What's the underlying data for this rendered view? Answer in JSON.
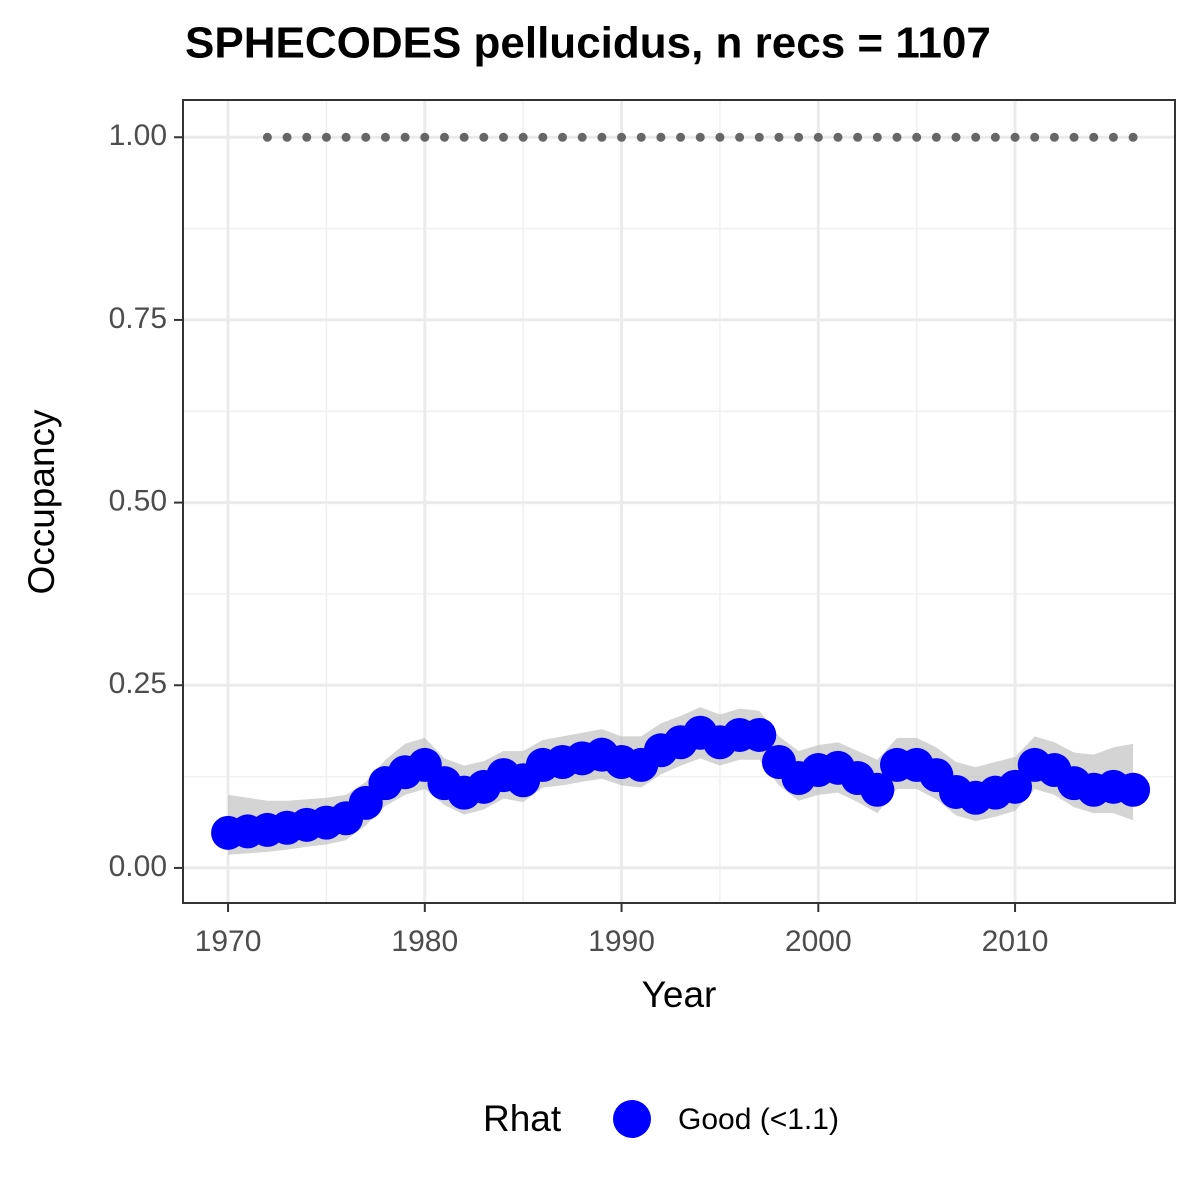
{
  "chart_data": {
    "type": "line",
    "title": "SPHECODES pellucidus, n recs = 1107",
    "xlabel": "Year",
    "ylabel": "Occupancy",
    "x": [
      1970,
      1971,
      1972,
      1973,
      1974,
      1975,
      1976,
      1977,
      1978,
      1979,
      1980,
      1981,
      1982,
      1983,
      1984,
      1985,
      1986,
      1987,
      1988,
      1989,
      1990,
      1991,
      1992,
      1993,
      1994,
      1995,
      1996,
      1997,
      1998,
      1999,
      2000,
      2001,
      2002,
      2003,
      2004,
      2005,
      2006,
      2007,
      2008,
      2009,
      2010,
      2011,
      2012,
      2013,
      2014,
      2015,
      2016
    ],
    "series": [
      {
        "name": "Good (<1.1)",
        "color": "#0000ff",
        "values": [
          0.048,
          0.05,
          0.052,
          0.055,
          0.059,
          0.062,
          0.068,
          0.089,
          0.116,
          0.131,
          0.141,
          0.116,
          0.103,
          0.111,
          0.127,
          0.12,
          0.141,
          0.145,
          0.15,
          0.155,
          0.145,
          0.141,
          0.161,
          0.172,
          0.185,
          0.172,
          0.182,
          0.182,
          0.145,
          0.123,
          0.134,
          0.137,
          0.123,
          0.107,
          0.141,
          0.141,
          0.127,
          0.104,
          0.096,
          0.103,
          0.111,
          0.141,
          0.134,
          0.116,
          0.107,
          0.111,
          0.107
        ],
        "lower": [
          0.018,
          0.02,
          0.022,
          0.025,
          0.029,
          0.032,
          0.038,
          0.058,
          0.085,
          0.1,
          0.108,
          0.086,
          0.073,
          0.08,
          0.095,
          0.09,
          0.11,
          0.113,
          0.118,
          0.122,
          0.113,
          0.11,
          0.128,
          0.14,
          0.15,
          0.14,
          0.148,
          0.148,
          0.113,
          0.092,
          0.1,
          0.103,
          0.09,
          0.075,
          0.108,
          0.108,
          0.094,
          0.072,
          0.064,
          0.07,
          0.078,
          0.108,
          0.1,
          0.083,
          0.075,
          0.075,
          0.065
        ],
        "upper": [
          0.1,
          0.096,
          0.092,
          0.092,
          0.094,
          0.096,
          0.1,
          0.118,
          0.148,
          0.17,
          0.178,
          0.15,
          0.14,
          0.146,
          0.16,
          0.16,
          0.175,
          0.18,
          0.185,
          0.19,
          0.18,
          0.18,
          0.198,
          0.208,
          0.22,
          0.21,
          0.218,
          0.215,
          0.18,
          0.16,
          0.168,
          0.172,
          0.16,
          0.148,
          0.178,
          0.178,
          0.165,
          0.145,
          0.138,
          0.145,
          0.152,
          0.18,
          0.172,
          0.158,
          0.155,
          0.165,
          0.17
        ]
      }
    ],
    "dots": {
      "color": "#666666",
      "x": [
        1972,
        1973,
        1974,
        1975,
        1976,
        1977,
        1978,
        1979,
        1980,
        1981,
        1982,
        1983,
        1984,
        1985,
        1986,
        1987,
        1988,
        1989,
        1990,
        1991,
        1992,
        1993,
        1994,
        1995,
        1996,
        1997,
        1998,
        1999,
        2000,
        2001,
        2002,
        2003,
        2004,
        2005,
        2006,
        2007,
        2008,
        2009,
        2010,
        2011,
        2012,
        2013,
        2014,
        2015,
        2016
      ],
      "values": [
        1,
        1,
        1,
        1,
        1,
        1,
        1,
        1,
        1,
        1,
        1,
        1,
        1,
        1,
        1,
        1,
        1,
        1,
        1,
        1,
        1,
        1,
        1,
        1,
        1,
        1,
        1,
        1,
        1,
        1,
        1,
        1,
        1,
        1,
        1,
        1,
        1,
        1,
        1,
        1,
        1,
        1,
        1,
        1,
        1
      ]
    },
    "xlim": [
      1967.71,
      2018.13
    ],
    "xticks": [
      1970,
      1980,
      1990,
      2000,
      2010
    ],
    "ylim": [
      -0.048,
      1.051
    ],
    "yticks": [
      {
        "value": 0,
        "label": "0.00"
      },
      {
        "value": 0.25,
        "label": "0.25"
      },
      {
        "value": 0.5,
        "label": "0.50"
      },
      {
        "value": 0.75,
        "label": "0.75"
      },
      {
        "value": 1,
        "label": "1.00"
      }
    ],
    "grid": true,
    "legend_title": "Rhat",
    "legend": "bottom"
  }
}
